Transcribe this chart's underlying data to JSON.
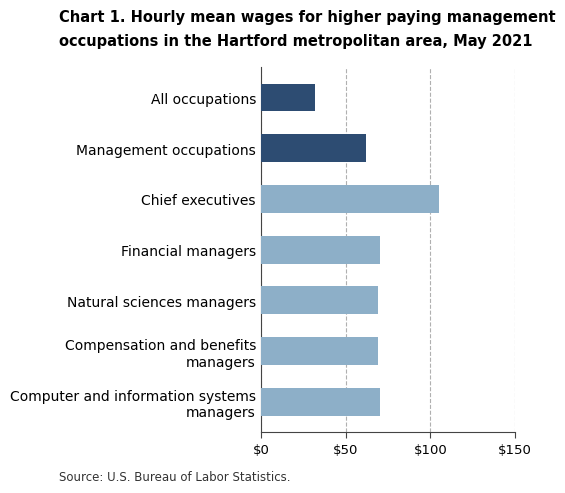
{
  "title_line1": "Chart 1. Hourly mean wages for higher paying management",
  "title_line2": "occupations in the Hartford metropolitan area, May 2021",
  "categories": [
    "Computer and information systems\nmanagers",
    "Compensation and benefits\nmanagers",
    "Natural sciences managers",
    "Financial managers",
    "Chief executives",
    "Management occupations",
    "All occupations"
  ],
  "values": [
    70,
    69,
    69,
    70,
    105,
    62,
    32
  ],
  "colors": [
    "#8dafc8",
    "#8dafc8",
    "#8dafc8",
    "#8dafc8",
    "#8dafc8",
    "#2d4c72",
    "#2d4c72"
  ],
  "xlim": [
    0,
    150
  ],
  "xticks": [
    0,
    50,
    100,
    150
  ],
  "xticklabels": [
    "$0",
    "$50",
    "$100",
    "$150"
  ],
  "source": "Source: U.S. Bureau of Labor Statistics.",
  "background_color": "#ffffff",
  "grid_color": "#b0b0b0",
  "title_fontsize": 10.5,
  "tick_fontsize": 9.5,
  "source_fontsize": 8.5,
  "bar_height": 0.55
}
